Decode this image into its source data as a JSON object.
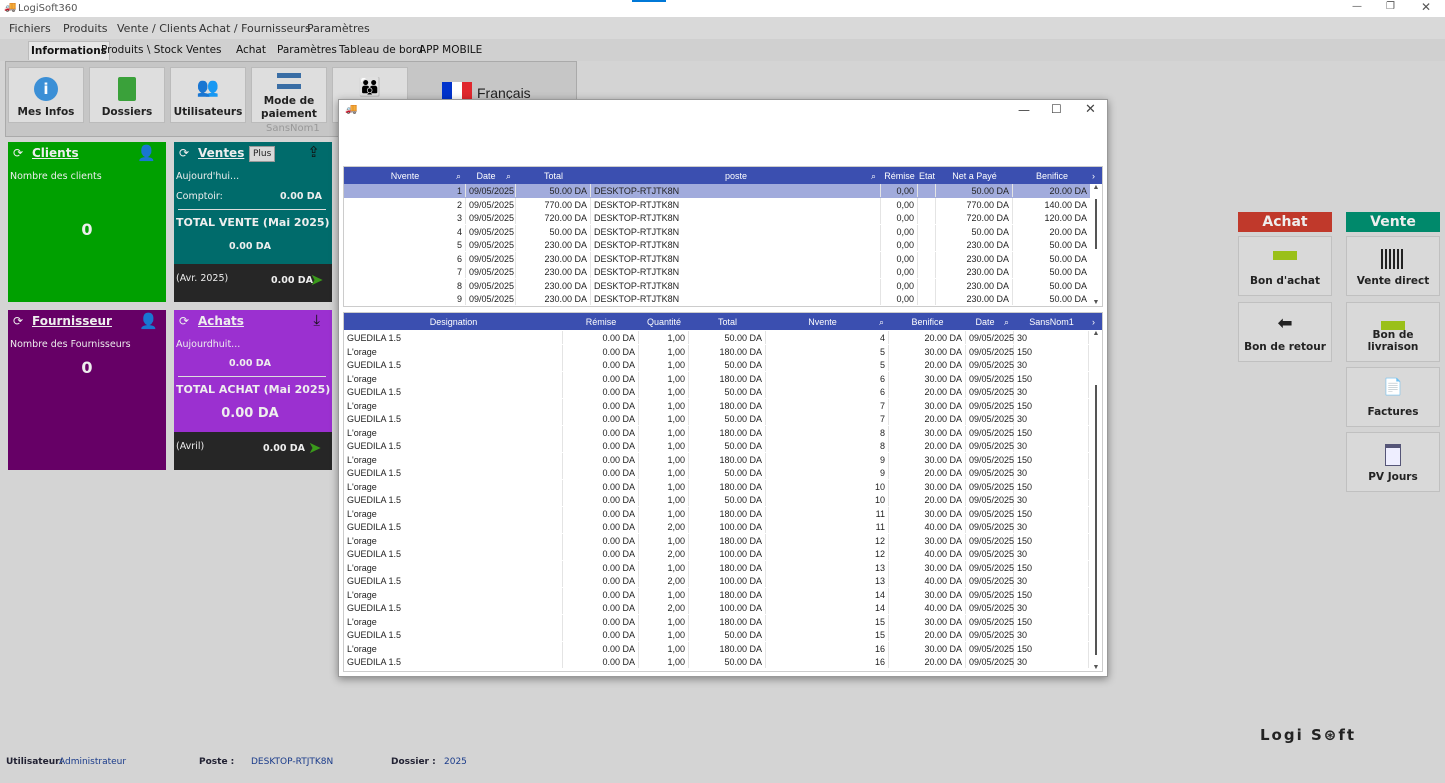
{
  "app": {
    "title": "LogiSoft360",
    "window_controls": [
      "minimize",
      "maximize",
      "close"
    ]
  },
  "menu": [
    "Fichiers",
    "Produits",
    "Vente / Clients",
    "Achat / Fournisseurs",
    "Paramètres"
  ],
  "tabs": [
    "Informations",
    "Produits \\ Stock",
    "Ventes",
    "Achat",
    "Paramètres",
    "Tableau de bord",
    "APP MOBILE"
  ],
  "ribbon": {
    "buttons": [
      {
        "label": "Mes Infos",
        "icon": "info-icon"
      },
      {
        "label": "Dossiers",
        "icon": "folder-search-icon"
      },
      {
        "label": "Utilisateurs",
        "icon": "users-icon"
      },
      {
        "label": "Mode de paiement",
        "icon": "card-icon"
      },
      {
        "label": "",
        "icon": "group-icon"
      }
    ],
    "group_label": "SansNom1",
    "language": "Français"
  },
  "tiles": {
    "clients": {
      "title": "Clients",
      "subtitle": "Nombre des clients",
      "value": "0",
      "color": "#00a000"
    },
    "ventes": {
      "title": "Ventes",
      "plus": "Plus",
      "today": "Aujourd'hui...",
      "comptoir_label": "Comptoir:",
      "comptoir_value": "0.00 DA",
      "total_label": "TOTAL VENTE (Mai 2025)",
      "total_value": "0.00 DA",
      "prev_label": "(Avr. 2025)",
      "prev_value": "0.00 DA",
      "color": "#006b6b"
    },
    "fournisseur": {
      "title": "Fournisseur",
      "subtitle": "Nombre des Fournisseurs",
      "value": "0",
      "color": "#660066"
    },
    "achats": {
      "title": "Achats",
      "today": "Aujourdhuit...",
      "today_value": "0.00 DA",
      "total_label": "TOTAL ACHAT (Mai 2025)",
      "total_value": "0.00 DA",
      "prev_label": "(Avril)",
      "prev_value": "0.00 DA",
      "color": "#9b30d0"
    }
  },
  "side": {
    "achat_header": "Achat",
    "vente_header": "Vente",
    "achat_color": "#c0392b",
    "vente_color": "#00896b",
    "achat_buttons": [
      "Bon d'achat",
      "Bon de retour"
    ],
    "vente_buttons": [
      "Vente direct",
      "Bon de livraison",
      "Factures",
      "PV Jours"
    ]
  },
  "ventes_grid": {
    "columns": [
      "Nvente",
      "Date",
      "Total",
      "poste",
      "Rémise",
      "Etat",
      "Net a Payé",
      "Benifice"
    ],
    "rows": [
      [
        "1",
        "09/05/2025",
        "50.00 DA",
        "DESKTOP-RTJTK8N",
        "0,00",
        "",
        "50.00 DA",
        "20.00 DA"
      ],
      [
        "2",
        "09/05/2025",
        "770.00 DA",
        "DESKTOP-RTJTK8N",
        "0,00",
        "",
        "770.00 DA",
        "140.00 DA"
      ],
      [
        "3",
        "09/05/2025",
        "720.00 DA",
        "DESKTOP-RTJTK8N",
        "0,00",
        "",
        "720.00 DA",
        "120.00 DA"
      ],
      [
        "4",
        "09/05/2025",
        "50.00 DA",
        "DESKTOP-RTJTK8N",
        "0,00",
        "",
        "50.00 DA",
        "20.00 DA"
      ],
      [
        "5",
        "09/05/2025",
        "230.00 DA",
        "DESKTOP-RTJTK8N",
        "0,00",
        "",
        "230.00 DA",
        "50.00 DA"
      ],
      [
        "6",
        "09/05/2025",
        "230.00 DA",
        "DESKTOP-RTJTK8N",
        "0,00",
        "",
        "230.00 DA",
        "50.00 DA"
      ],
      [
        "7",
        "09/05/2025",
        "230.00 DA",
        "DESKTOP-RTJTK8N",
        "0,00",
        "",
        "230.00 DA",
        "50.00 DA"
      ],
      [
        "8",
        "09/05/2025",
        "230.00 DA",
        "DESKTOP-RTJTK8N",
        "0,00",
        "",
        "230.00 DA",
        "50.00 DA"
      ],
      [
        "9",
        "09/05/2025",
        "230.00 DA",
        "DESKTOP-RTJTK8N",
        "0,00",
        "",
        "230.00 DA",
        "50.00 DA"
      ]
    ],
    "selected_row": 0
  },
  "lignes_grid": {
    "columns": [
      "Designation",
      "Rémise",
      "Quantité",
      "Total",
      "Nvente",
      "Benifice",
      "Date",
      "SansNom1"
    ],
    "rows": [
      [
        "GUEDILA 1.5",
        "0.00 DA",
        "1,00",
        "50.00 DA",
        "4",
        "20.00 DA",
        "09/05/2025",
        "30"
      ],
      [
        "L'orage",
        "0.00 DA",
        "1,00",
        "180.00 DA",
        "5",
        "30.00 DA",
        "09/05/2025",
        "150"
      ],
      [
        "GUEDILA 1.5",
        "0.00 DA",
        "1,00",
        "50.00 DA",
        "5",
        "20.00 DA",
        "09/05/2025",
        "30"
      ],
      [
        "L'orage",
        "0.00 DA",
        "1,00",
        "180.00 DA",
        "6",
        "30.00 DA",
        "09/05/2025",
        "150"
      ],
      [
        "GUEDILA 1.5",
        "0.00 DA",
        "1,00",
        "50.00 DA",
        "6",
        "20.00 DA",
        "09/05/2025",
        "30"
      ],
      [
        "L'orage",
        "0.00 DA",
        "1,00",
        "180.00 DA",
        "7",
        "30.00 DA",
        "09/05/2025",
        "150"
      ],
      [
        "GUEDILA 1.5",
        "0.00 DA",
        "1,00",
        "50.00 DA",
        "7",
        "20.00 DA",
        "09/05/2025",
        "30"
      ],
      [
        "L'orage",
        "0.00 DA",
        "1,00",
        "180.00 DA",
        "8",
        "30.00 DA",
        "09/05/2025",
        "150"
      ],
      [
        "GUEDILA 1.5",
        "0.00 DA",
        "1,00",
        "50.00 DA",
        "8",
        "20.00 DA",
        "09/05/2025",
        "30"
      ],
      [
        "L'orage",
        "0.00 DA",
        "1,00",
        "180.00 DA",
        "9",
        "30.00 DA",
        "09/05/2025",
        "150"
      ],
      [
        "GUEDILA 1.5",
        "0.00 DA",
        "1,00",
        "50.00 DA",
        "9",
        "20.00 DA",
        "09/05/2025",
        "30"
      ],
      [
        "L'orage",
        "0.00 DA",
        "1,00",
        "180.00 DA",
        "10",
        "30.00 DA",
        "09/05/2025",
        "150"
      ],
      [
        "GUEDILA 1.5",
        "0.00 DA",
        "1,00",
        "50.00 DA",
        "10",
        "20.00 DA",
        "09/05/2025",
        "30"
      ],
      [
        "L'orage",
        "0.00 DA",
        "1,00",
        "180.00 DA",
        "11",
        "30.00 DA",
        "09/05/2025",
        "150"
      ],
      [
        "GUEDILA 1.5",
        "0.00 DA",
        "2,00",
        "100.00 DA",
        "11",
        "40.00 DA",
        "09/05/2025",
        "30"
      ],
      [
        "L'orage",
        "0.00 DA",
        "1,00",
        "180.00 DA",
        "12",
        "30.00 DA",
        "09/05/2025",
        "150"
      ],
      [
        "GUEDILA 1.5",
        "0.00 DA",
        "2,00",
        "100.00 DA",
        "12",
        "40.00 DA",
        "09/05/2025",
        "30"
      ],
      [
        "L'orage",
        "0.00 DA",
        "1,00",
        "180.00 DA",
        "13",
        "30.00 DA",
        "09/05/2025",
        "150"
      ],
      [
        "GUEDILA 1.5",
        "0.00 DA",
        "2,00",
        "100.00 DA",
        "13",
        "40.00 DA",
        "09/05/2025",
        "30"
      ],
      [
        "L'orage",
        "0.00 DA",
        "1,00",
        "180.00 DA",
        "14",
        "30.00 DA",
        "09/05/2025",
        "150"
      ],
      [
        "GUEDILA 1.5",
        "0.00 DA",
        "2,00",
        "100.00 DA",
        "14",
        "40.00 DA",
        "09/05/2025",
        "30"
      ],
      [
        "L'orage",
        "0.00 DA",
        "1,00",
        "180.00 DA",
        "15",
        "30.00 DA",
        "09/05/2025",
        "150"
      ],
      [
        "GUEDILA 1.5",
        "0.00 DA",
        "1,00",
        "50.00 DA",
        "15",
        "20.00 DA",
        "09/05/2025",
        "30"
      ],
      [
        "L'orage",
        "0.00 DA",
        "1,00",
        "180.00 DA",
        "16",
        "30.00 DA",
        "09/05/2025",
        "150"
      ],
      [
        "GUEDILA 1.5",
        "0.00 DA",
        "1,00",
        "50.00 DA",
        "16",
        "20.00 DA",
        "09/05/2025",
        "30"
      ]
    ]
  },
  "status": {
    "user_label": "Utilisateur:",
    "user": "Administrateur",
    "poste_label": "Poste :",
    "poste": "DESKTOP-RTJTK8N",
    "dossier_label": "Dossier :",
    "dossier": "2025"
  },
  "logo": "LogiSoft360"
}
